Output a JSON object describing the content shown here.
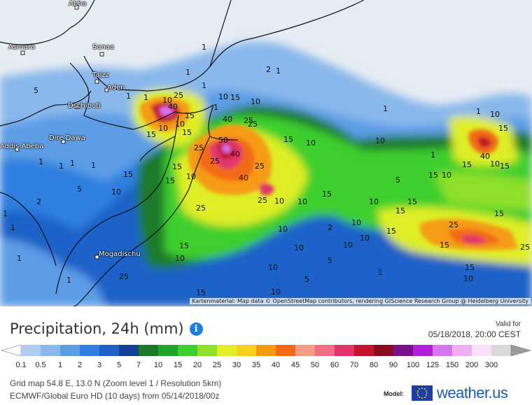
{
  "map": {
    "cities": [
      {
        "name": "Abha"
      },
      {
        "name": "Asmara"
      },
      {
        "name": "Sanaa"
      },
      {
        "name": "Taizz"
      },
      {
        "name": "Aden"
      },
      {
        "name": "Dschibuti"
      },
      {
        "name": "Dire Dawa"
      },
      {
        "name": "Addis Abeba"
      },
      {
        "name": "Mogadischu"
      }
    ],
    "contour_labels": [
      "1",
      "2",
      "1",
      "1",
      "5",
      "1",
      "1",
      "1",
      "1",
      "10",
      "25",
      "40",
      "15",
      "10",
      "15",
      "10",
      "10",
      "15",
      "40",
      "25",
      "10",
      "15",
      "50",
      "25",
      "15",
      "10",
      "10",
      "40",
      "25",
      "15",
      "25",
      "40",
      "10",
      "15",
      "10",
      "15",
      "40",
      "10",
      "25",
      "10",
      "10",
      "15",
      "25",
      "15",
      "10",
      "15",
      "5",
      "10",
      "1",
      "1",
      "1",
      "15",
      "25",
      "15",
      "10",
      "15",
      "25",
      "15",
      "15",
      "10",
      "5",
      "10",
      "1",
      "25",
      "15",
      "15",
      "10",
      "10",
      "1",
      "15",
      "1",
      "15",
      "25",
      "10",
      "10",
      "10",
      "1",
      "5",
      "1",
      "2",
      "10",
      "10",
      "15",
      "1",
      "2",
      "1",
      "5",
      "1",
      "1"
    ],
    "attribution": "Kartenmaterial: Map data © OpenStreetMap contributors, rendering GIScience Research Group @ Heidelberg University"
  },
  "header": {
    "title": "Precipitation, 24h (mm)",
    "info_icon": "info-icon",
    "valid_label": "Valid for",
    "valid_time": "05/18/2018, 20:00 CEST"
  },
  "legend": {
    "ticks": [
      "0.1",
      "0.5",
      "1",
      "2",
      "3",
      "5",
      "7",
      "10",
      "15",
      "20",
      "25",
      "30",
      "35",
      "40",
      "45",
      "50",
      "60",
      "70",
      "80",
      "90",
      "100",
      "125",
      "150",
      "200",
      "300"
    ],
    "colors": [
      "#aecdf0",
      "#8ab8ec",
      "#5c9de6",
      "#2f7fe0",
      "#1e62c8",
      "#163f99",
      "#1a7a2a",
      "#22a32a",
      "#3ccf2f",
      "#8fe02a",
      "#dfee26",
      "#f5d11c",
      "#f59b12",
      "#f26a16",
      "#f59a84",
      "#ef6f87",
      "#e2346b",
      "#c4142b",
      "#8a0c1e",
      "#7a108c",
      "#b31fd8",
      "#d874f0",
      "#f0aef5",
      "#fbe0fb",
      "#d9d9d9"
    ]
  },
  "meta": {
    "grid": "Grid map 54.8 E, 13.0 N  (Zoom level 1 / Resolution 5km)",
    "model": "ECMWF/Global Euro HD  (10 days)  from 05/14/2018/00z",
    "model_label": "Model:",
    "brand": "weather.us"
  }
}
